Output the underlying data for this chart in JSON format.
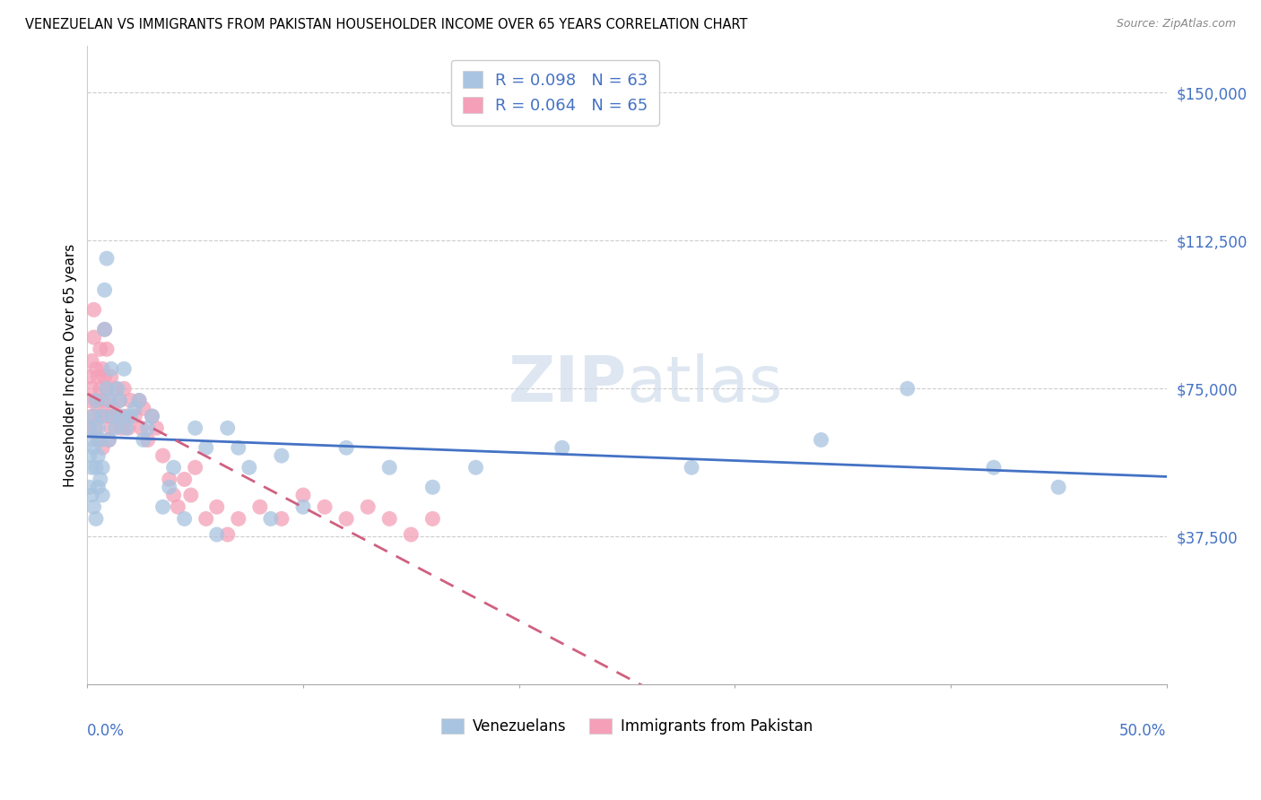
{
  "title": "VENEZUELAN VS IMMIGRANTS FROM PAKISTAN HOUSEHOLDER INCOME OVER 65 YEARS CORRELATION CHART",
  "source": "Source: ZipAtlas.com",
  "ylabel": "Householder Income Over 65 years",
  "y_ticks": [
    0,
    37500,
    75000,
    112500,
    150000
  ],
  "y_tick_labels": [
    "",
    "$37,500",
    "$75,000",
    "$112,500",
    "$150,000"
  ],
  "xlim": [
    0,
    0.5
  ],
  "ylim": [
    0,
    162000
  ],
  "venezuelan_R": "0.098",
  "venezuelan_N": "63",
  "pakistan_R": "0.064",
  "pakistan_N": "65",
  "venezuelan_color": "#a8c4e0",
  "pakistan_color": "#f4a0b8",
  "venezuelan_line_color": "#4472c4",
  "pakistan_line_color": "#d06080",
  "watermark_text": "ZIP",
  "watermark_text2": "atlas",
  "venezuelan_x": [
    0.001,
    0.001,
    0.001,
    0.002,
    0.002,
    0.002,
    0.003,
    0.003,
    0.003,
    0.004,
    0.004,
    0.004,
    0.005,
    0.005,
    0.005,
    0.006,
    0.006,
    0.007,
    0.007,
    0.007,
    0.008,
    0.008,
    0.009,
    0.009,
    0.01,
    0.01,
    0.011,
    0.012,
    0.013,
    0.014,
    0.015,
    0.016,
    0.017,
    0.018,
    0.02,
    0.022,
    0.024,
    0.026,
    0.028,
    0.03,
    0.035,
    0.038,
    0.04,
    0.045,
    0.05,
    0.055,
    0.06,
    0.065,
    0.07,
    0.075,
    0.085,
    0.09,
    0.1,
    0.12,
    0.14,
    0.16,
    0.18,
    0.22,
    0.28,
    0.34,
    0.38,
    0.42,
    0.45
  ],
  "venezuelan_y": [
    65000,
    58000,
    50000,
    62000,
    55000,
    48000,
    68000,
    60000,
    45000,
    72000,
    55000,
    42000,
    65000,
    58000,
    50000,
    62000,
    52000,
    68000,
    48000,
    55000,
    100000,
    90000,
    108000,
    75000,
    72000,
    62000,
    80000,
    68000,
    65000,
    75000,
    72000,
    68000,
    80000,
    65000,
    68000,
    70000,
    72000,
    62000,
    65000,
    68000,
    45000,
    50000,
    55000,
    42000,
    65000,
    60000,
    38000,
    65000,
    60000,
    55000,
    42000,
    58000,
    45000,
    60000,
    55000,
    50000,
    55000,
    60000,
    55000,
    62000,
    75000,
    55000,
    50000
  ],
  "pakistan_x": [
    0.001,
    0.001,
    0.001,
    0.002,
    0.002,
    0.002,
    0.003,
    0.003,
    0.004,
    0.004,
    0.004,
    0.005,
    0.005,
    0.005,
    0.006,
    0.006,
    0.006,
    0.007,
    0.007,
    0.007,
    0.008,
    0.008,
    0.009,
    0.009,
    0.009,
    0.01,
    0.01,
    0.011,
    0.011,
    0.012,
    0.013,
    0.014,
    0.015,
    0.016,
    0.017,
    0.018,
    0.019,
    0.02,
    0.022,
    0.024,
    0.025,
    0.026,
    0.028,
    0.03,
    0.032,
    0.035,
    0.038,
    0.04,
    0.042,
    0.045,
    0.048,
    0.05,
    0.055,
    0.06,
    0.065,
    0.07,
    0.08,
    0.09,
    0.1,
    0.11,
    0.12,
    0.13,
    0.14,
    0.15,
    0.16
  ],
  "pakistan_y": [
    78000,
    72000,
    65000,
    82000,
    75000,
    68000,
    95000,
    88000,
    80000,
    72000,
    65000,
    78000,
    70000,
    62000,
    85000,
    75000,
    68000,
    80000,
    72000,
    60000,
    90000,
    78000,
    85000,
    75000,
    68000,
    72000,
    62000,
    78000,
    65000,
    70000,
    75000,
    68000,
    72000,
    65000,
    75000,
    68000,
    65000,
    72000,
    68000,
    72000,
    65000,
    70000,
    62000,
    68000,
    65000,
    58000,
    52000,
    48000,
    45000,
    52000,
    48000,
    55000,
    42000,
    45000,
    38000,
    42000,
    45000,
    42000,
    48000,
    45000,
    42000,
    45000,
    42000,
    38000,
    42000
  ]
}
